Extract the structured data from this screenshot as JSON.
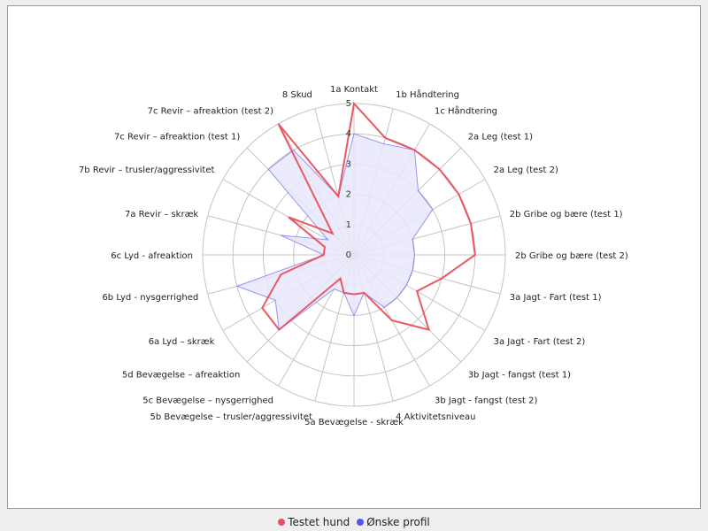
{
  "chart_data": {
    "type": "radar",
    "categories": [
      "1a Kontakt",
      "1b Håndtering",
      "1c Håndtering",
      "2a Leg (test 1)",
      "2a Leg (test 2)",
      "2b Gribe og bære (test 1)",
      "2b Gribe og bære (test 2)",
      "3a Jagt - Fart (test 1)",
      "3a Jagt - Fart (test 2)",
      "3b Jagt - fangst (test 1)",
      "3b Jagt - fangst (test 2)",
      "4 Aktivitetsniveau",
      "5a Bevægelse - skræk",
      "5b Bevægelse – trusler/aggressivitet",
      "5c Bevægelse – nysgerrighed",
      "5d Bevægelse – afreaktion",
      "6a Lyd – skræk",
      "6b Lyd - nysgerrighed",
      "6c Lyd - afreaktion",
      "7a Revir – skræk",
      "7b Revir – trusler/aggressivitet",
      "7c Revir – afreaktion (test 1)",
      "7c Revir – afreaktion (test 2)",
      "8 Skud"
    ],
    "rlim": [
      0,
      5
    ],
    "ticks": [
      "0",
      "1",
      "2",
      "3",
      "4",
      "5"
    ],
    "grid": true,
    "legend_position": "bottom",
    "series": [
      {
        "name": "Testet hund",
        "color": "#e8505a",
        "fill": "none",
        "values": [
          5,
          4,
          4,
          4,
          4,
          4,
          4,
          3,
          2.4,
          3.5,
          2.5,
          1.3,
          1.3,
          1.3,
          0.9,
          3.5,
          3.5,
          2.5,
          1,
          1,
          2.5,
          1,
          5,
          2
        ]
      },
      {
        "name": "Ønske profil",
        "color": "#5555ee",
        "fill": "#e8e8fa",
        "values": [
          4,
          3.8,
          4,
          3,
          3,
          2,
          2,
          2,
          2,
          2,
          2,
          1.3,
          2,
          1.3,
          1.3,
          3.5,
          3,
          4,
          1,
          2.5,
          1,
          4,
          4,
          2
        ]
      }
    ]
  }
}
